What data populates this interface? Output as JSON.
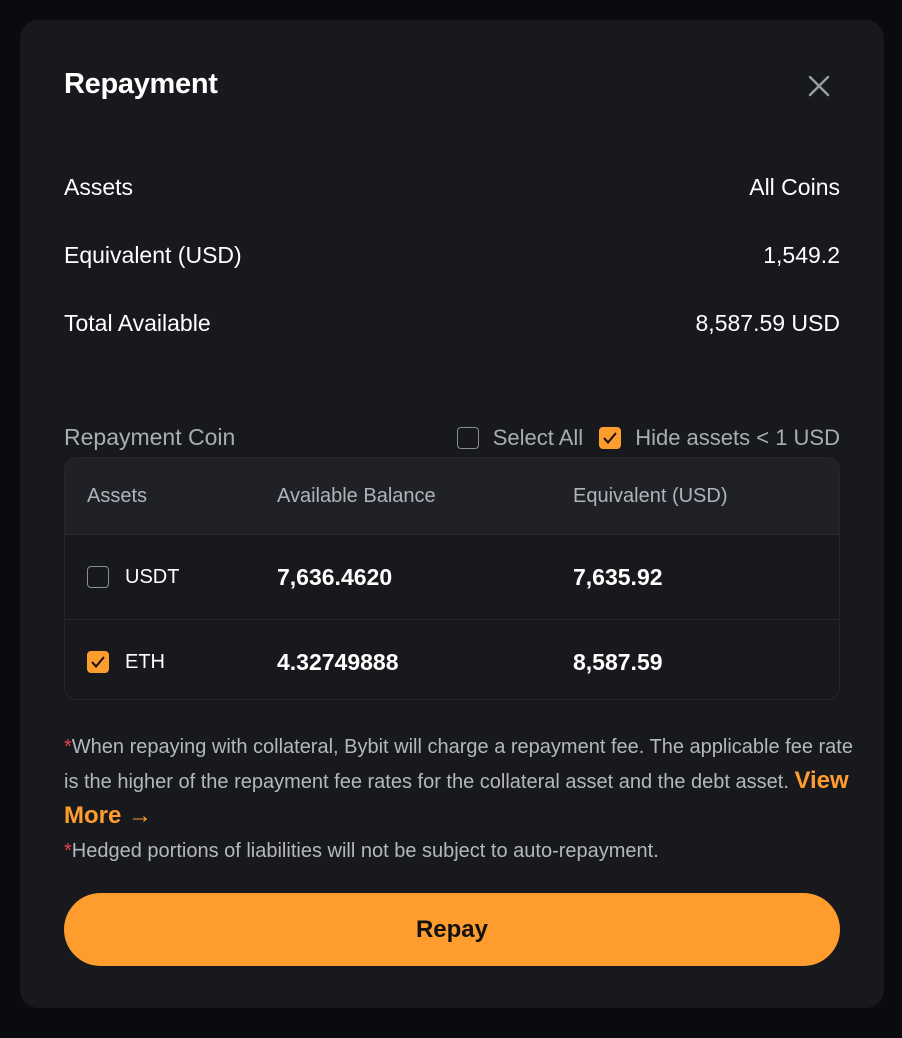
{
  "modal": {
    "title": "Repayment",
    "close_icon": "close-icon",
    "summary": [
      {
        "label": "Assets",
        "value": "All Coins"
      },
      {
        "label": "Equivalent (USD)",
        "value": "1,549.2"
      },
      {
        "label": "Total Available",
        "value": "8,587.59 USD"
      }
    ],
    "coin_section": {
      "label": "Repayment Coin",
      "select_all": {
        "label": "Select All",
        "checked": false
      },
      "hide_small": {
        "label": "Hide assets < 1 USD",
        "checked": true
      }
    },
    "table": {
      "headers": [
        "Assets",
        "Available Balance",
        "Equivalent (USD)"
      ],
      "rows": [
        {
          "asset": "USDT",
          "balance": "7,636.4620",
          "equivalent": "7,635.92",
          "checked": false
        },
        {
          "asset": "ETH",
          "balance": "4.32749888",
          "equivalent": "8,587.59",
          "checked": true
        }
      ]
    },
    "notes": {
      "star": "*",
      "note1": "When repaying with collateral, Bybit will charge a repayment fee. The applicable fee rate is the higher of the repayment fee rates for the collateral asset and the debt asset.",
      "view_more": "View More →",
      "note2": "Hedged portions of liabilities will not be subject to auto-repayment."
    },
    "repay_label": "Repay"
  },
  "colors": {
    "accent": "#ff9c2e",
    "modal_bg": "#18191d",
    "asterisk": "#f0404a"
  }
}
